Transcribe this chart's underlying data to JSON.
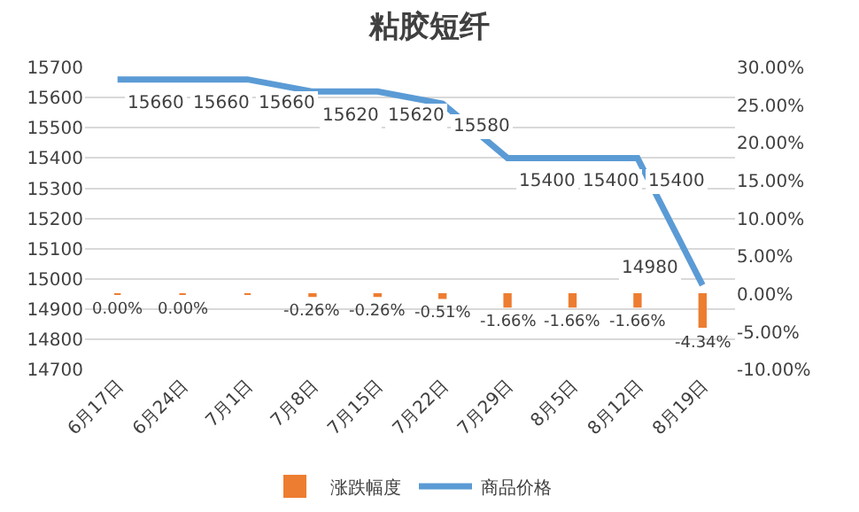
{
  "chart_data": {
    "type": "bar",
    "title": "粘胶短纤",
    "categories": [
      "6月17日",
      "6月24日",
      "7月1日",
      "7月8日",
      "7月15日",
      "7月22日",
      "7月29日",
      "8月5日",
      "8月12日",
      "8月19日"
    ],
    "series": [
      {
        "name": "涨跌幅度",
        "axis": "y2",
        "color": "#ed7d31",
        "values": [
          0,
          0,
          0,
          -0.26,
          -0.26,
          -0.51,
          -1.66,
          -1.66,
          -1.66,
          -4.34
        ],
        "value_labels": [
          "0.00%",
          "0.00%",
          null,
          "-0.26%",
          "-0.26%",
          "-0.51%",
          "-1.66%",
          "-1.66%",
          "-1.66%",
          "-4.34%"
        ]
      },
      {
        "name": "商品价格",
        "type": "line",
        "color": "#5b9bd5",
        "values": [
          15660,
          15660,
          15660,
          15620,
          15620,
          15580,
          15400,
          15400,
          15400,
          14980
        ],
        "value_labels": [
          "15660",
          "15660",
          "15660",
          "15620",
          "15620",
          "15580",
          "15400",
          "15400",
          "15400",
          "14980"
        ]
      }
    ],
    "ylim": [
      14700,
      15700
    ],
    "yticks": [
      14700,
      14800,
      14900,
      15000,
      15100,
      15200,
      15300,
      15400,
      15500,
      15600,
      15700
    ],
    "y2lim": [
      -10,
      30
    ],
    "y2ticks": [
      {
        "value": -10,
        "label": "-10.00%"
      },
      {
        "value": -5,
        "label": "-5.00%"
      },
      {
        "value": 0,
        "label": "0.00%"
      },
      {
        "value": 5,
        "label": "5.00%"
      },
      {
        "value": 10,
        "label": "10.00%"
      },
      {
        "value": 15,
        "label": "15.00%"
      },
      {
        "value": 20,
        "label": "20.00%"
      },
      {
        "value": 25,
        "label": "25.00%"
      },
      {
        "value": 30,
        "label": "30.00%"
      }
    ],
    "grid": "y",
    "legend": "bottom",
    "marker": "none",
    "line_style": "solid"
  }
}
